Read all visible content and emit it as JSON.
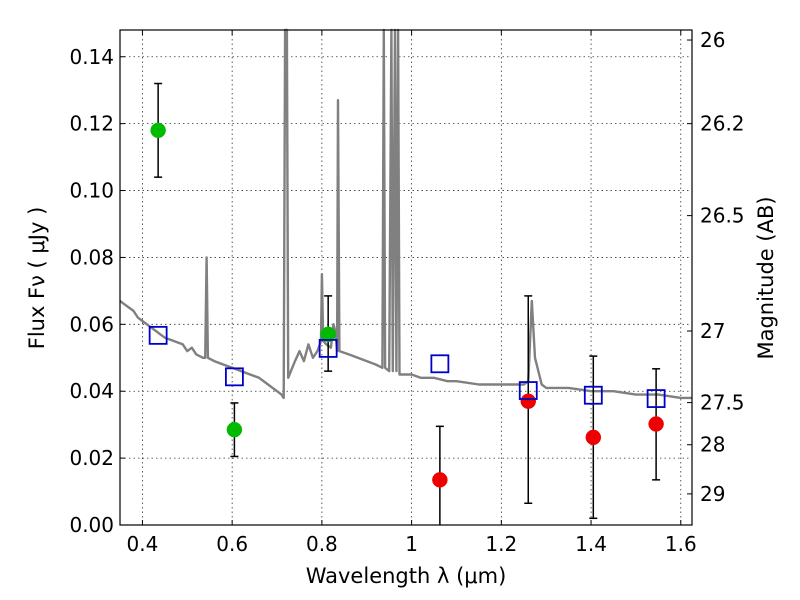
{
  "chart_data": {
    "type": "scatter",
    "title": "",
    "xlabel": "Wavelength  λ (μm)",
    "ylabel": "Flux  Fν  ( μJy )",
    "y2label": "Magnitude (AB)",
    "xlim": [
      0.35,
      1.625
    ],
    "ylim": [
      0,
      0.148
    ],
    "grid": true,
    "x_ticks": [
      0.4,
      0.6,
      0.8,
      1.0,
      1.2,
      1.4,
      1.6
    ],
    "x_tick_labels": [
      "0.4",
      "0.6",
      "0.8",
      "1",
      "1.2",
      "1.4",
      "1.6"
    ],
    "y_ticks": [
      0,
      0.02,
      0.04,
      0.06,
      0.08,
      0.1,
      0.12,
      0.14
    ],
    "y_tick_labels": [
      "0.00",
      "0.02",
      "0.04",
      "0.06",
      "0.08",
      "0.10",
      "0.12",
      "0.14"
    ],
    "y2_ticks": [
      {
        "label": "26",
        "flux": 0.145
      },
      {
        "label": "26.2",
        "flux": 0.12
      },
      {
        "label": "26.5",
        "flux": 0.0925
      },
      {
        "label": "27",
        "flux": 0.058
      },
      {
        "label": "27.5",
        "flux": 0.0366
      },
      {
        "label": "28",
        "flux": 0.024
      },
      {
        "label": "29",
        "flux": 0.0093
      }
    ],
    "colors": {
      "spectrum": "#808080",
      "detections": "#00bb00",
      "upper_limits": "#ee0000",
      "model": "#0000cc",
      "errorbar": "#000000"
    },
    "series": [
      {
        "kind": "line",
        "points": [
          [
            0.35,
            0.067
          ],
          [
            0.36,
            0.066
          ],
          [
            0.37,
            0.065
          ],
          [
            0.38,
            0.064
          ],
          [
            0.39,
            0.062
          ],
          [
            0.4,
            0.061
          ],
          [
            0.41,
            0.06
          ],
          [
            0.42,
            0.059
          ],
          [
            0.43,
            0.058
          ],
          [
            0.44,
            0.057
          ],
          [
            0.45,
            0.056
          ],
          [
            0.47,
            0.055
          ],
          [
            0.49,
            0.054
          ],
          [
            0.5,
            0.052
          ],
          [
            0.51,
            0.053
          ],
          [
            0.52,
            0.051
          ],
          [
            0.535,
            0.05
          ],
          [
            0.54,
            0.05
          ],
          [
            0.543,
            0.08
          ],
          [
            0.546,
            0.05
          ],
          [
            0.56,
            0.049
          ],
          [
            0.58,
            0.048
          ],
          [
            0.6,
            0.047
          ],
          [
            0.62,
            0.046
          ],
          [
            0.64,
            0.045
          ],
          [
            0.66,
            0.044
          ],
          [
            0.68,
            0.042
          ],
          [
            0.7,
            0.04
          ],
          [
            0.71,
            0.039
          ],
          [
            0.715,
            0.038
          ],
          [
            0.718,
            0.148
          ],
          [
            0.722,
            0.148
          ],
          [
            0.725,
            0.044
          ],
          [
            0.74,
            0.049
          ],
          [
            0.75,
            0.052
          ],
          [
            0.76,
            0.049
          ],
          [
            0.77,
            0.054
          ],
          [
            0.78,
            0.05
          ],
          [
            0.79,
            0.052
          ],
          [
            0.798,
            0.055
          ],
          [
            0.8,
            0.075
          ],
          [
            0.803,
            0.055
          ],
          [
            0.81,
            0.054
          ],
          [
            0.82,
            0.053
          ],
          [
            0.826,
            0.06
          ],
          [
            0.83,
            0.058
          ],
          [
            0.834,
            0.052
          ],
          [
            0.836,
            0.127
          ],
          [
            0.839,
            0.052
          ],
          [
            0.86,
            0.051
          ],
          [
            0.88,
            0.05
          ],
          [
            0.9,
            0.049
          ],
          [
            0.92,
            0.048
          ],
          [
            0.935,
            0.047
          ],
          [
            0.938,
            0.148
          ],
          [
            0.941,
            0.047
          ],
          [
            0.95,
            0.046
          ],
          [
            0.955,
            0.148
          ],
          [
            0.958,
            0.046
          ],
          [
            0.963,
            0.148
          ],
          [
            0.966,
            0.046
          ],
          [
            0.97,
            0.148
          ],
          [
            0.973,
            0.045
          ],
          [
            0.98,
            0.045
          ],
          [
            1.0,
            0.045
          ],
          [
            1.02,
            0.044
          ],
          [
            1.05,
            0.044
          ],
          [
            1.08,
            0.043
          ],
          [
            1.1,
            0.043
          ],
          [
            1.15,
            0.042
          ],
          [
            1.2,
            0.042
          ],
          [
            1.25,
            0.042
          ],
          [
            1.26,
            0.043
          ],
          [
            1.268,
            0.067
          ],
          [
            1.275,
            0.05
          ],
          [
            1.29,
            0.042
          ],
          [
            1.3,
            0.041
          ],
          [
            1.35,
            0.041
          ],
          [
            1.4,
            0.04
          ],
          [
            1.45,
            0.04
          ],
          [
            1.5,
            0.039
          ],
          [
            1.55,
            0.039
          ],
          [
            1.6,
            0.038
          ],
          [
            1.625,
            0.038
          ]
        ]
      },
      {
        "kind": "detections",
        "points": [
          {
            "x": 0.435,
            "y": 0.118,
            "ylo": 0.104,
            "yhi": 0.132
          },
          {
            "x": 0.605,
            "y": 0.0285,
            "ylo": 0.0205,
            "yhi": 0.0365
          },
          {
            "x": 0.814,
            "y": 0.057,
            "ylo": 0.046,
            "yhi": 0.0685
          }
        ]
      },
      {
        "kind": "upper_limits",
        "points": [
          {
            "x": 1.063,
            "y": 0.0135,
            "ylo": 0.0,
            "yhi": 0.0295
          },
          {
            "x": 1.26,
            "y": 0.037,
            "ylo": 0.0065,
            "yhi": 0.0685
          },
          {
            "x": 1.405,
            "y": 0.0262,
            "ylo": 0.002,
            "yhi": 0.0505
          },
          {
            "x": 1.545,
            "y": 0.0302,
            "ylo": 0.0135,
            "yhi": 0.0467
          }
        ]
      },
      {
        "kind": "model",
        "points": [
          {
            "x": 0.435,
            "y": 0.0567
          },
          {
            "x": 0.605,
            "y": 0.0443
          },
          {
            "x": 0.814,
            "y": 0.0528
          },
          {
            "x": 1.063,
            "y": 0.0482
          },
          {
            "x": 1.26,
            "y": 0.0402
          },
          {
            "x": 1.405,
            "y": 0.0388
          },
          {
            "x": 1.545,
            "y": 0.0378
          }
        ]
      }
    ]
  }
}
